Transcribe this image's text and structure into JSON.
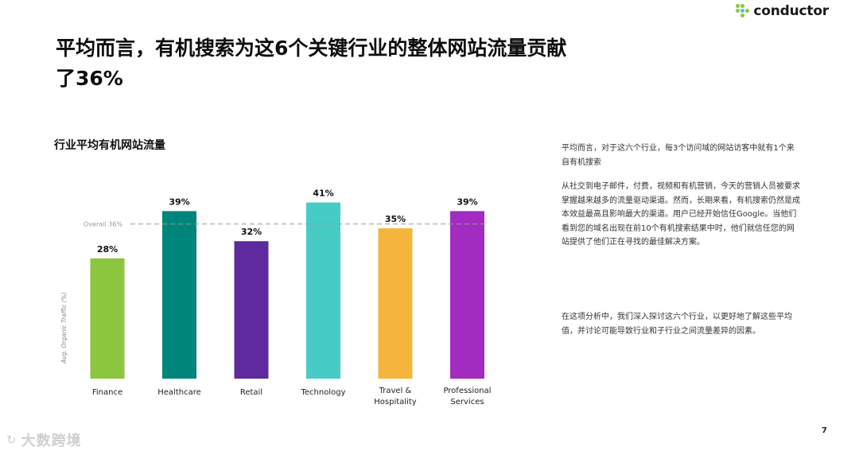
{
  "header": {
    "logo_text": "conductor",
    "title_line1": "平均而言，有机搜索为这6个关键行业的整体网站流量贡献",
    "title_line2": "了36%"
  },
  "chart_data": {
    "type": "bar",
    "title": "行业平均有机网站流量",
    "ylabel": "Avg. Organic Traffic (%)",
    "xlabel": "",
    "categories": [
      "Finance",
      "Healthcare",
      "Retail",
      "Technology",
      "Travel & Hospitality",
      "Professional Services"
    ],
    "category_lines": [
      [
        "Finance"
      ],
      [
        "Healthcare"
      ],
      [
        "Retail"
      ],
      [
        "Technology"
      ],
      [
        "Travel &",
        "Hospitality"
      ],
      [
        "Professional",
        "Services"
      ]
    ],
    "values": [
      28,
      39,
      32,
      41,
      35,
      39
    ],
    "value_labels": [
      "28%",
      "39%",
      "32%",
      "41%",
      "35%",
      "39%"
    ],
    "colors": [
      "#8cc63f",
      "#00857a",
      "#5e2a9e",
      "#46ccc4",
      "#f5b53c",
      "#a12cbf"
    ],
    "reference_line": {
      "value": 36,
      "label": "Overall 36%"
    },
    "ylim": [
      0,
      45
    ],
    "grid": false,
    "legend": "none"
  },
  "side": {
    "p1": "平均而言，对于这六个行业，每3个访问域的网站访客中就有1个来自有机搜索",
    "p2": "从社交到电子邮件，付费，视频和有机营销，今天的营销人员被要求掌握越来越多的流量驱动渠道。然而，长期来看，有机搜索仍然是成本效益最高且影响最大的渠道。用户已经开始信任Google。当他们看到您的域名出现在前10个有机搜索结果中时，他们就信任您的网站提供了他们正在寻找的最佳解决方案。",
    "p3": "在这项分析中，我们深入探讨这六个行业，以更好地了解这些平均值，并讨论可能导致行业和子行业之间流量差异的因素。"
  },
  "footer": {
    "page_number": "7",
    "watermark_text": "大数跨境"
  }
}
